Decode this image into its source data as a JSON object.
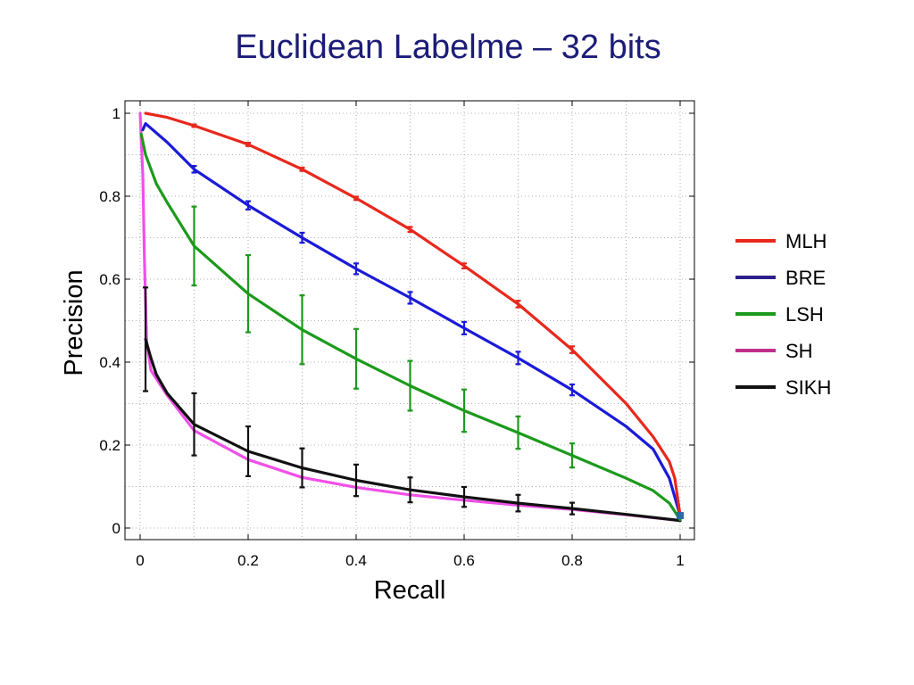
{
  "slide": {
    "title": "Euclidean Labelme – 32 bits"
  },
  "chart_data": {
    "type": "line",
    "title": "",
    "xlabel": "Recall",
    "ylabel": "Precision",
    "xlim": [
      0,
      1
    ],
    "ylim": [
      0,
      1
    ],
    "xticks": [
      "0",
      "0.2",
      "0.4",
      "0.6",
      "0.8",
      "1"
    ],
    "yticks": [
      "0",
      "0.2",
      "0.4",
      "0.6",
      "0.8",
      "1"
    ],
    "grid": true,
    "legend_position": "right",
    "series": [
      {
        "name": "MLH",
        "color": "#e8281c",
        "x": [
          0.01,
          0.05,
          0.1,
          0.2,
          0.3,
          0.4,
          0.5,
          0.6,
          0.7,
          0.8,
          0.9,
          0.95,
          0.98,
          0.99,
          1.0
        ],
        "y": [
          1.0,
          0.99,
          0.97,
          0.925,
          0.865,
          0.795,
          0.72,
          0.632,
          0.54,
          0.43,
          0.3,
          0.22,
          0.16,
          0.12,
          0.03
        ],
        "error_x": [
          0.1,
          0.2,
          0.3,
          0.4,
          0.5,
          0.6,
          0.7,
          0.8
        ],
        "error_y": [
          0.97,
          0.925,
          0.865,
          0.795,
          0.72,
          0.632,
          0.54,
          0.43
        ],
        "error_size": [
          0.003,
          0.004,
          0.004,
          0.004,
          0.006,
          0.006,
          0.008,
          0.008
        ]
      },
      {
        "name": "BRE",
        "color": "#1a1ad8",
        "x": [
          0.005,
          0.01,
          0.05,
          0.1,
          0.2,
          0.3,
          0.4,
          0.5,
          0.6,
          0.7,
          0.8,
          0.9,
          0.95,
          0.98,
          1.0
        ],
        "y": [
          0.96,
          0.975,
          0.93,
          0.865,
          0.778,
          0.7,
          0.625,
          0.555,
          0.482,
          0.41,
          0.333,
          0.245,
          0.19,
          0.12,
          0.03
        ],
        "error_x": [
          0.1,
          0.2,
          0.3,
          0.4,
          0.5,
          0.6,
          0.7,
          0.8
        ],
        "error_y": [
          0.865,
          0.778,
          0.7,
          0.625,
          0.555,
          0.482,
          0.41,
          0.333
        ],
        "error_size": [
          0.008,
          0.01,
          0.012,
          0.013,
          0.014,
          0.015,
          0.015,
          0.013
        ]
      },
      {
        "name": "LSH",
        "color": "#1c9a1c",
        "x": [
          0.002,
          0.01,
          0.03,
          0.05,
          0.1,
          0.2,
          0.3,
          0.4,
          0.5,
          0.6,
          0.7,
          0.8,
          0.9,
          0.95,
          0.98,
          1.0
        ],
        "y": [
          0.95,
          0.9,
          0.83,
          0.785,
          0.68,
          0.565,
          0.478,
          0.408,
          0.343,
          0.283,
          0.23,
          0.175,
          0.12,
          0.09,
          0.06,
          0.02
        ],
        "error_x": [
          0.1,
          0.2,
          0.3,
          0.4,
          0.5,
          0.6,
          0.7,
          0.8
        ],
        "error_y": [
          0.68,
          0.565,
          0.478,
          0.408,
          0.343,
          0.283,
          0.23,
          0.175
        ],
        "error_size": [
          0.095,
          0.093,
          0.083,
          0.072,
          0.06,
          0.051,
          0.039,
          0.029
        ]
      },
      {
        "name": "SH",
        "color": "#f050e8",
        "x": [
          0.0,
          0.005,
          0.008,
          0.012,
          0.02,
          0.05,
          0.1,
          0.2,
          0.3,
          0.4,
          0.5,
          0.6,
          0.7,
          0.8,
          0.9,
          1.0
        ],
        "y": [
          1.0,
          0.85,
          0.65,
          0.45,
          0.38,
          0.32,
          0.235,
          0.165,
          0.122,
          0.098,
          0.08,
          0.067,
          0.055,
          0.045,
          0.032,
          0.018
        ],
        "error_x": [],
        "error_y": [],
        "error_size": []
      },
      {
        "name": "SIKH",
        "color": "#111111",
        "x": [
          0.01,
          0.02,
          0.03,
          0.05,
          0.1,
          0.2,
          0.3,
          0.4,
          0.5,
          0.6,
          0.7,
          0.8,
          0.9,
          1.0
        ],
        "y": [
          0.455,
          0.41,
          0.37,
          0.325,
          0.25,
          0.185,
          0.145,
          0.115,
          0.092,
          0.075,
          0.06,
          0.047,
          0.033,
          0.018
        ],
        "error_x": [
          0.01,
          0.1,
          0.2,
          0.3,
          0.4,
          0.5,
          0.6,
          0.7,
          0.8
        ],
        "error_y": [
          0.455,
          0.25,
          0.185,
          0.145,
          0.115,
          0.092,
          0.075,
          0.06,
          0.047
        ],
        "error_size": [
          0.125,
          0.075,
          0.06,
          0.047,
          0.038,
          0.03,
          0.024,
          0.02,
          0.014
        ]
      }
    ]
  }
}
